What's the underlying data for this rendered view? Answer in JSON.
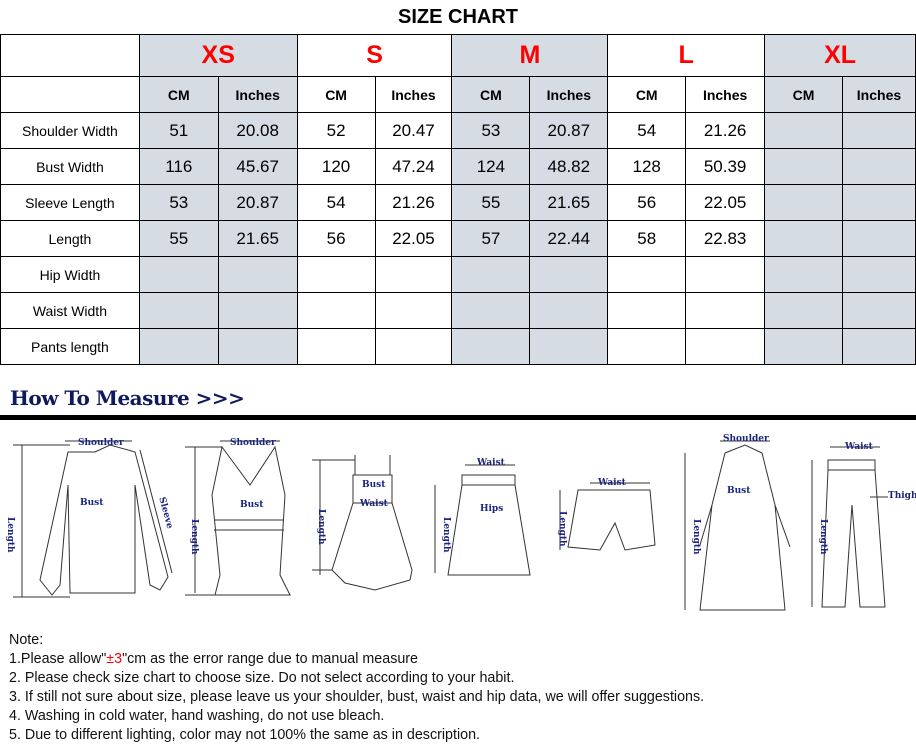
{
  "title": "SIZE CHART",
  "sizes": [
    "XS",
    "S",
    "M",
    "L",
    "XL"
  ],
  "units": [
    "CM",
    "Inches"
  ],
  "rows": [
    {
      "label": "Shoulder Width",
      "values": [
        "51",
        "20.08",
        "52",
        "20.47",
        "53",
        "20.87",
        "54",
        "21.26",
        "",
        ""
      ]
    },
    {
      "label": "Bust Width",
      "values": [
        "116",
        "45.67",
        "120",
        "47.24",
        "124",
        "48.82",
        "128",
        "50.39",
        "",
        ""
      ]
    },
    {
      "label": "Sleeve Length",
      "values": [
        "53",
        "20.87",
        "54",
        "21.26",
        "55",
        "21.65",
        "56",
        "22.05",
        "",
        ""
      ]
    },
    {
      "label": "Length",
      "values": [
        "55",
        "21.65",
        "56",
        "22.05",
        "57",
        "22.44",
        "58",
        "22.83",
        "",
        ""
      ]
    },
    {
      "label": "Hip Width",
      "values": [
        "",
        "",
        "",
        "",
        "",
        "",
        "",
        "",
        "",
        ""
      ]
    },
    {
      "label": "Waist Width",
      "values": [
        "",
        "",
        "",
        "",
        "",
        "",
        "",
        "",
        "",
        ""
      ]
    },
    {
      "label": "Pants length",
      "values": [
        "",
        "",
        "",
        "",
        "",
        "",
        "",
        "",
        "",
        ""
      ]
    }
  ],
  "colors": {
    "size_label": "#ff0000",
    "shaded_column": "#d6dce4",
    "howto": "#0f1a5c"
  },
  "measure": {
    "heading": "How To Measure >>>",
    "labels": {
      "shoulder": "Shoulder",
      "bust": "Bust",
      "sleeve": "Sleeve",
      "length": "Length",
      "waist": "Waist",
      "hips": "Hips",
      "thigh": "Thigh"
    }
  },
  "notes": {
    "heading": "Note:",
    "n1_pre": "1.Please allow\"",
    "n1_red": "±3",
    "n1_post": "\"cm as the error range due to manual measure",
    "n2": "2. Please check size chart to choose size. Do not select according to your habit.",
    "n3": "3. If still not sure about size, please leave us your shoulder, bust, waist and hip data, we will offer suggestions.",
    "n4": "4. Washing in cold water, hand washing, do not use bleach.",
    "n5": "5. Due to different lighting, color may not 100% the same as in description."
  }
}
